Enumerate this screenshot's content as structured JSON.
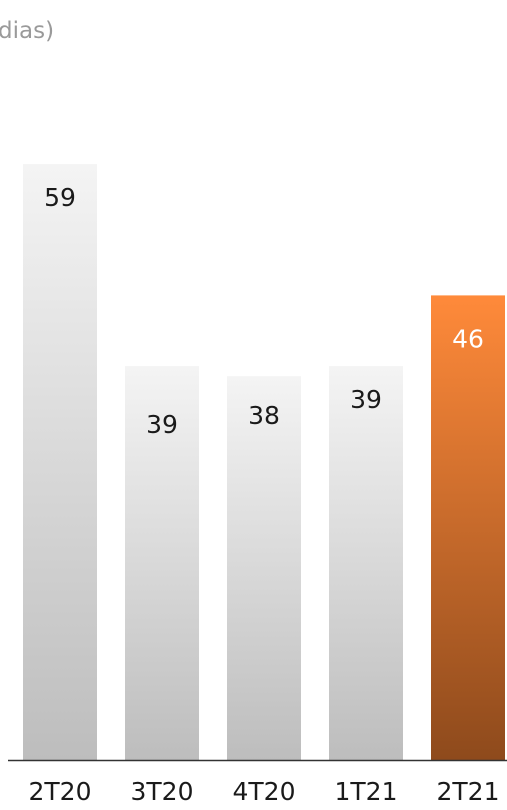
{
  "chart_data": {
    "type": "bar",
    "title": "dias)",
    "categories": [
      "2T20",
      "3T20",
      "4T20",
      "1T21",
      "2T21"
    ],
    "values": [
      59,
      39,
      38,
      39,
      46
    ],
    "highlight_index": 4,
    "colors": {
      "bar_light_top": "#f4f4f4",
      "bar_light_bottom": "#bdbdbd",
      "bar_highlight_top": "#ff8a3a",
      "bar_highlight_bottom": "#8e4a1c",
      "label_dark": "#1a1a1a",
      "label_light": "#ffffff",
      "axis": "#333333"
    },
    "grid": false,
    "legend": "none"
  }
}
